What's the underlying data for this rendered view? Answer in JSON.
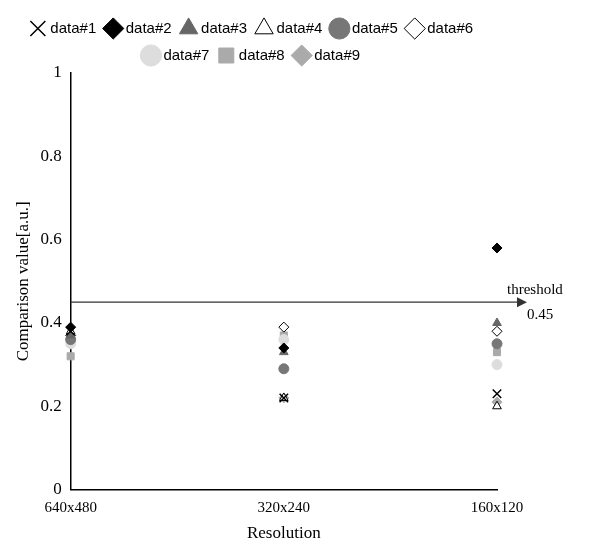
{
  "chart_data": {
    "type": "scatter",
    "x_label": "Resolution",
    "y_label": "Comparison value[a.u.]",
    "categories": [
      "640x480",
      "320x240",
      "160x120"
    ],
    "ylim": [
      0,
      1
    ],
    "yticks": [
      0,
      0.2,
      0.4,
      0.6,
      0.8,
      1
    ],
    "grid": false,
    "legend": "top",
    "threshold": {
      "value": 0.45,
      "label": "threshold"
    },
    "series": [
      {
        "name": "data#1",
        "color": "#000000",
        "marker": "x",
        "values": [
          0.38,
          0.22,
          0.23
        ]
      },
      {
        "name": "data#2",
        "color": "#000000",
        "marker": "diamond",
        "values": [
          0.39,
          0.34,
          0.58
        ]
      },
      {
        "name": "data#3",
        "color": "#666666",
        "marker": "triangle",
        "values": [
          0.37,
          0.33,
          0.4
        ]
      },
      {
        "name": "data#4",
        "color": "#000000",
        "marker": "triangle_open",
        "values": [
          0.38,
          0.22,
          0.2
        ]
      },
      {
        "name": "data#5",
        "color": "#777777",
        "marker": "circle",
        "values": [
          0.36,
          0.29,
          0.35
        ]
      },
      {
        "name": "data#6",
        "color": "#000000",
        "marker": "diamond_open",
        "values": [
          0.37,
          0.39,
          0.38
        ]
      },
      {
        "name": "data#7",
        "color": "#dddddd",
        "marker": "circle",
        "values": [
          0.35,
          0.36,
          0.3
        ]
      },
      {
        "name": "data#8",
        "color": "#aaaaaa",
        "marker": "square",
        "values": [
          0.32,
          0.37,
          0.33
        ]
      },
      {
        "name": "data#9",
        "color": "#aaaaaa",
        "marker": "diamond",
        "values": [
          0.36,
          0.22,
          0.21
        ]
      }
    ]
  }
}
